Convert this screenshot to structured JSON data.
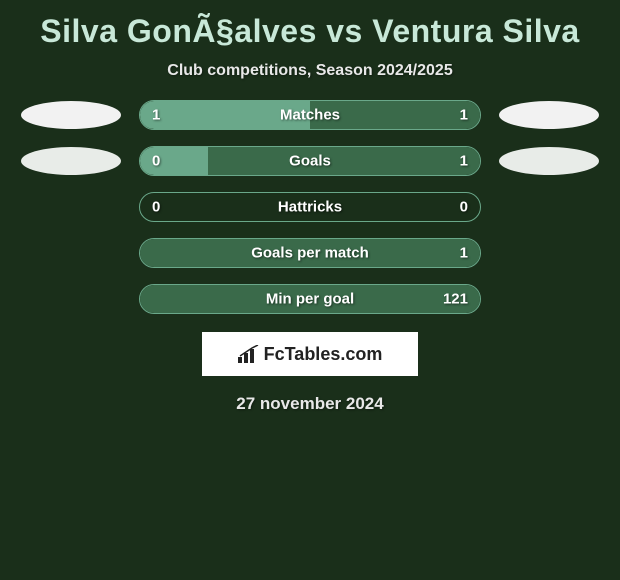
{
  "title": "Silva GonÃ§alves vs Ventura Silva",
  "subtitle": "Club competitions, Season 2024/2025",
  "date": "27 november 2024",
  "logo_text": "FcTables.com",
  "colors": {
    "background": "#1a2f1a",
    "bar_border": "#6aa88a",
    "title_text": "#c8e8d8",
    "body_text": "#e8e8e8",
    "ellipse_white": "#f2f2f2",
    "ellipse_light": "#e8ece8"
  },
  "rows": [
    {
      "label": "Matches",
      "left_val": "1",
      "right_val": "1",
      "left_pct": 50,
      "right_pct": 50,
      "left_color": "#6aa88a",
      "right_color": "#3a6a4a",
      "ellipse_left_show": true,
      "ellipse_right_show": true,
      "ellipse_left_color": "#f2f2f2",
      "ellipse_right_color": "#f2f2f2"
    },
    {
      "label": "Goals",
      "left_val": "0",
      "right_val": "1",
      "left_pct": 20,
      "right_pct": 80,
      "left_color": "#6aa88a",
      "right_color": "#3a6a4a",
      "ellipse_left_show": true,
      "ellipse_right_show": true,
      "ellipse_left_color": "#e8ece8",
      "ellipse_right_color": "#e8ece8"
    },
    {
      "label": "Hattricks",
      "left_val": "0",
      "right_val": "0",
      "left_pct": 0,
      "right_pct": 0,
      "left_color": "#6aa88a",
      "right_color": "#3a6a4a",
      "ellipse_left_show": false,
      "ellipse_right_show": false,
      "ellipse_left_color": "",
      "ellipse_right_color": ""
    },
    {
      "label": "Goals per match",
      "left_val": "",
      "right_val": "1",
      "left_pct": 0,
      "right_pct": 100,
      "left_color": "#6aa88a",
      "right_color": "#3a6a4a",
      "ellipse_left_show": false,
      "ellipse_right_show": false,
      "ellipse_left_color": "",
      "ellipse_right_color": ""
    },
    {
      "label": "Min per goal",
      "left_val": "",
      "right_val": "121",
      "left_pct": 0,
      "right_pct": 100,
      "left_color": "#6aa88a",
      "right_color": "#3a6a4a",
      "ellipse_left_show": false,
      "ellipse_right_show": false,
      "ellipse_left_color": "",
      "ellipse_right_color": ""
    }
  ]
}
